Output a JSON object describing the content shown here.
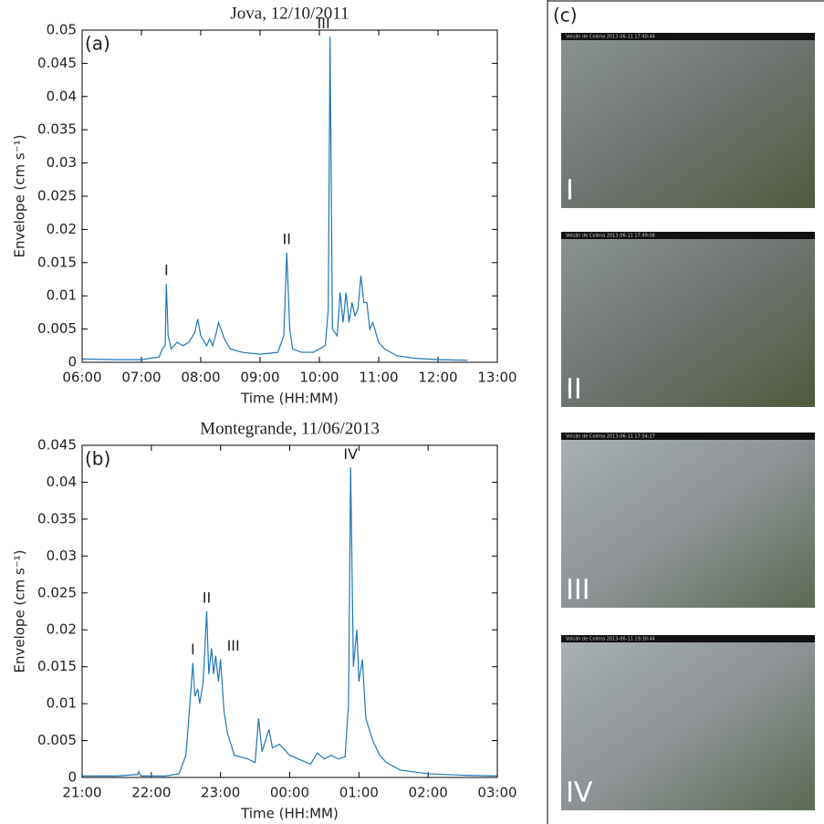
{
  "chart_data": [
    {
      "type": "line",
      "panel": "(a)",
      "title": "Jova, 12/10/2011",
      "x_label": "Time (HH:MM)",
      "y_label": "Envelope (cm s⁻¹)",
      "color": "#1f77b4",
      "x": [
        6.0,
        6.5,
        7.0,
        7.3,
        7.35,
        7.4,
        7.42,
        7.45,
        7.5,
        7.6,
        7.7,
        7.8,
        7.9,
        7.95,
        8.0,
        8.1,
        8.15,
        8.2,
        8.25,
        8.3,
        8.4,
        8.5,
        8.7,
        9.0,
        9.3,
        9.4,
        9.45,
        9.5,
        9.55,
        9.7,
        9.9,
        10.0,
        10.1,
        10.15,
        10.18,
        10.22,
        10.3,
        10.35,
        10.4,
        10.45,
        10.5,
        10.55,
        10.6,
        10.65,
        10.7,
        10.75,
        10.8,
        10.85,
        10.9,
        11.0,
        11.1,
        11.3,
        11.6,
        12.0,
        12.5
      ],
      "values": [
        0.0005,
        0.0004,
        0.0004,
        0.0008,
        0.002,
        0.0025,
        0.0118,
        0.004,
        0.002,
        0.003,
        0.0025,
        0.003,
        0.0045,
        0.0065,
        0.004,
        0.0025,
        0.0035,
        0.0025,
        0.004,
        0.006,
        0.0035,
        0.002,
        0.0015,
        0.0012,
        0.0015,
        0.004,
        0.0165,
        0.005,
        0.002,
        0.0015,
        0.0015,
        0.002,
        0.0025,
        0.008,
        0.049,
        0.005,
        0.004,
        0.0105,
        0.006,
        0.0105,
        0.006,
        0.009,
        0.007,
        0.008,
        0.013,
        0.009,
        0.009,
        0.005,
        0.006,
        0.003,
        0.002,
        0.001,
        0.0006,
        0.0004,
        0.0003
      ],
      "annotations": [
        {
          "text": "I",
          "x": 7.42,
          "y": 0.0118
        },
        {
          "text": "II",
          "x": 9.45,
          "y": 0.0165
        },
        {
          "text": "III",
          "x": 10.18,
          "y": 0.049
        }
      ],
      "xlim": [
        6,
        13
      ],
      "xticks": [
        {
          "value": 6,
          "label": "06:00"
        },
        {
          "value": 7,
          "label": "07:00"
        },
        {
          "value": 8,
          "label": "08:00"
        },
        {
          "value": 9,
          "label": "09:00"
        },
        {
          "value": 10,
          "label": "10:00"
        },
        {
          "value": 11,
          "label": "11:00"
        },
        {
          "value": 12,
          "label": "12:00"
        },
        {
          "value": 13,
          "label": "13:00"
        }
      ],
      "ylim": [
        0,
        0.05
      ],
      "yticks": [
        0,
        0.005,
        0.01,
        0.015,
        0.02,
        0.025,
        0.03,
        0.035,
        0.04,
        0.045,
        0.05
      ]
    },
    {
      "type": "line",
      "panel": "(b)",
      "title": "Montegrande, 11/06/2013",
      "x_label": "Time (HH:MM)",
      "y_label": "Envelope (cm s⁻¹)",
      "color": "#1f77b4",
      "x": [
        21.0,
        21.5,
        21.8,
        21.82,
        21.85,
        22.2,
        22.4,
        22.5,
        22.55,
        22.6,
        22.63,
        22.67,
        22.7,
        22.75,
        22.8,
        22.83,
        22.87,
        22.9,
        22.93,
        22.97,
        23.0,
        23.05,
        23.1,
        23.2,
        23.4,
        23.5,
        23.55,
        23.6,
        23.7,
        23.75,
        23.85,
        24.0,
        24.2,
        24.3,
        24.4,
        24.5,
        24.6,
        24.7,
        24.8,
        24.85,
        24.88,
        24.92,
        24.97,
        25.0,
        25.05,
        25.1,
        25.2,
        25.3,
        25.4,
        25.6,
        26.0,
        26.5,
        27.0
      ],
      "values": [
        0.0002,
        0.0002,
        0.0004,
        0.0008,
        0.0002,
        0.0002,
        0.0005,
        0.003,
        0.009,
        0.0155,
        0.011,
        0.012,
        0.01,
        0.013,
        0.0225,
        0.014,
        0.0175,
        0.014,
        0.0165,
        0.013,
        0.016,
        0.009,
        0.006,
        0.003,
        0.0025,
        0.002,
        0.008,
        0.0035,
        0.0065,
        0.004,
        0.0045,
        0.003,
        0.0022,
        0.0018,
        0.0033,
        0.0025,
        0.003,
        0.0025,
        0.0028,
        0.01,
        0.042,
        0.015,
        0.02,
        0.013,
        0.016,
        0.008,
        0.005,
        0.003,
        0.002,
        0.001,
        0.0005,
        0.0003,
        0.0002
      ],
      "annotations": [
        {
          "text": "I",
          "x": 22.6,
          "y": 0.0155
        },
        {
          "text": "II",
          "x": 22.8,
          "y": 0.0225
        },
        {
          "text": "III",
          "x": 23.0,
          "y": 0.016
        },
        {
          "text": "IV",
          "x": 24.88,
          "y": 0.042
        }
      ],
      "xlim": [
        21,
        27
      ],
      "xticks": [
        {
          "value": 21,
          "label": "21:00"
        },
        {
          "value": 22,
          "label": "22:00"
        },
        {
          "value": 23,
          "label": "23:00"
        },
        {
          "value": 24,
          "label": "00:00"
        },
        {
          "value": 25,
          "label": "01:00"
        },
        {
          "value": 26,
          "label": "02:00"
        },
        {
          "value": 27,
          "label": "03:00"
        }
      ],
      "ylim": [
        0,
        0.045
      ],
      "yticks": [
        0,
        0.005,
        0.01,
        0.015,
        0.02,
        0.025,
        0.03,
        0.035,
        0.04,
        0.045
      ]
    }
  ],
  "panel_c": {
    "label": "(c)",
    "photos": [
      {
        "label": "I",
        "caption": "Volcán de Colima 2013-06-11 17:40:44"
      },
      {
        "label": "II",
        "caption": "Volcán de Colima 2013-06-11 17:49:08"
      },
      {
        "label": "III",
        "caption": "Volcán de Colima 2013-06-11 17:54:27"
      },
      {
        "label": "IV",
        "caption": "Volcán de Colima 2013-06-11 19:30:44"
      }
    ]
  }
}
